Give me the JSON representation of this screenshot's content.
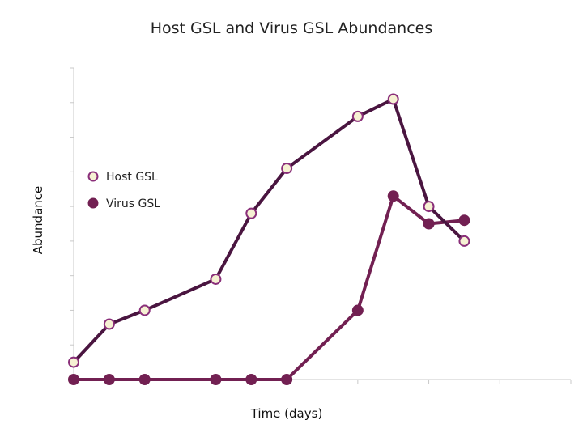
{
  "chart_data": {
    "type": "line",
    "title": "Host GSL and Virus GSL Abundances",
    "xlabel": "Time (days)",
    "ylabel": "Abundance",
    "xlim": [
      0,
      14
    ],
    "ylim": [
      0,
      9
    ],
    "grid": false,
    "tick_labels_shown": false,
    "legend_position": "left-middle",
    "series": [
      {
        "name": "Host GSL",
        "color": "#4a1540",
        "marker_fill": "#f6f1d3",
        "marker_stroke": "#8a2f7a",
        "x": [
          0,
          1,
          2,
          4,
          5,
          6,
          8,
          9,
          10,
          11
        ],
        "y": [
          0.5,
          1.6,
          2.0,
          2.9,
          4.8,
          6.1,
          7.6,
          8.1,
          5.0,
          4.0
        ]
      },
      {
        "name": "Virus GSL",
        "color": "#722052",
        "marker_fill": "#722052",
        "marker_stroke": "#722052",
        "x": [
          0,
          1,
          2,
          4,
          5,
          6,
          8,
          9,
          10,
          11
        ],
        "y": [
          0,
          0,
          0,
          0,
          0,
          0,
          2.0,
          5.3,
          4.5,
          4.6
        ]
      }
    ]
  }
}
